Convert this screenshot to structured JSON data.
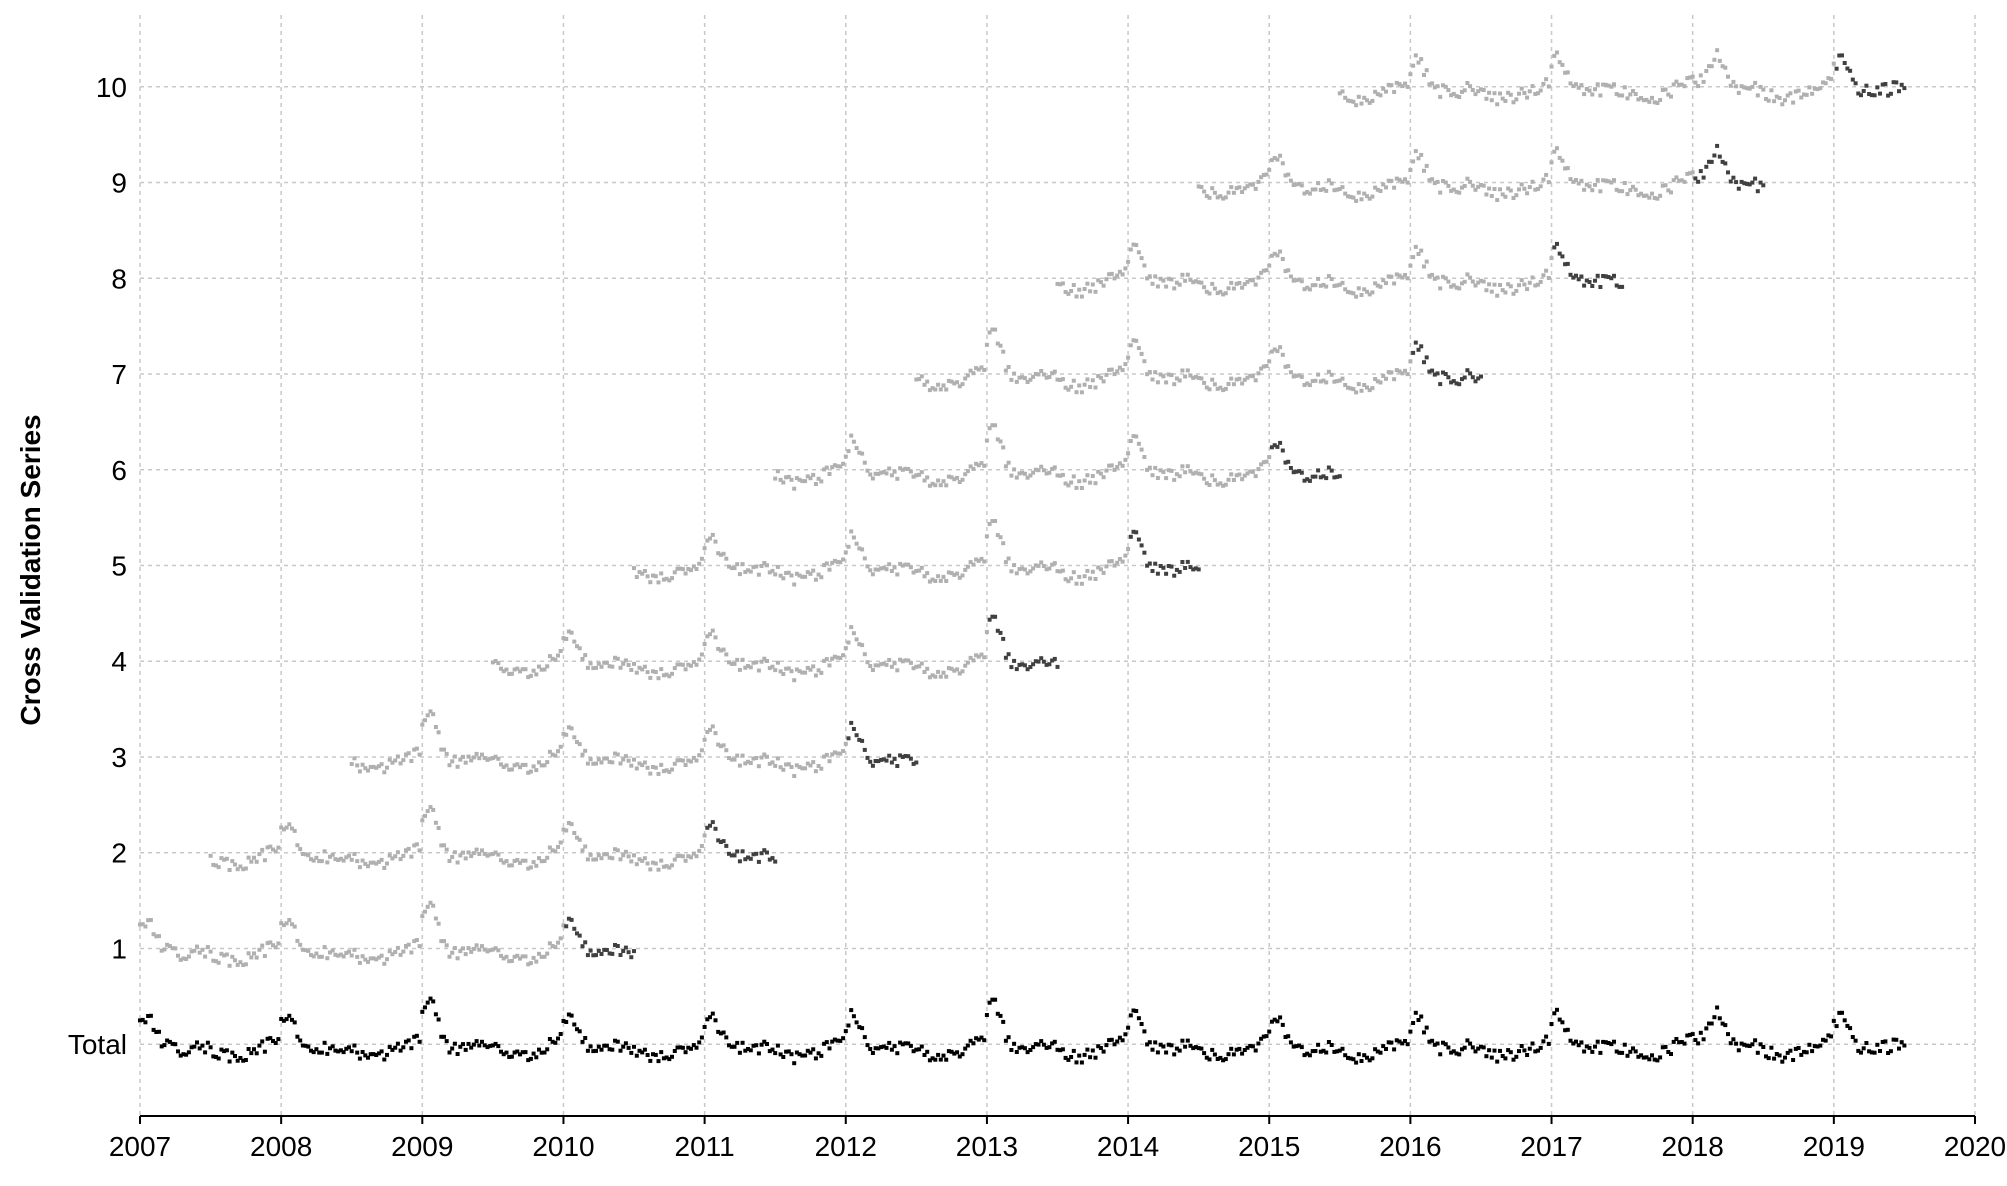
{
  "chart_data": {
    "type": "scatter",
    "title": "",
    "xlabel": "",
    "ylabel": "Cross Validation Series",
    "x_ticks": [
      "2007",
      "2008",
      "2009",
      "2010",
      "2011",
      "2012",
      "2013",
      "2014",
      "2015",
      "2016",
      "2017",
      "2018",
      "2019",
      "2020"
    ],
    "y_ticks": [
      {
        "row": 0,
        "label": "Total"
      },
      {
        "row": 1,
        "label": "1"
      },
      {
        "row": 2,
        "label": "2"
      },
      {
        "row": 3,
        "label": "3"
      },
      {
        "row": 4,
        "label": "4"
      },
      {
        "row": 5,
        "label": "5"
      },
      {
        "row": 6,
        "label": "6"
      },
      {
        "row": 7,
        "label": "7"
      },
      {
        "row": 8,
        "label": "8"
      },
      {
        "row": 9,
        "label": "9"
      },
      {
        "row": 10,
        "label": "10"
      }
    ],
    "xlim": [
      2007,
      2020
    ],
    "ylim": [
      -0.75,
      10.75
    ],
    "grid": true,
    "legend": "none",
    "colors": {
      "total": "#000000",
      "training": "#b0b0b0",
      "validation": "#404040",
      "grid": "#c8c8c8"
    },
    "total_series": {
      "name": "Total",
      "row": 0,
      "start": 2007.0,
      "end": 2019.5
    },
    "folds": [
      {
        "row": 1,
        "train_start": 2007.0,
        "split": 2010.0,
        "valid_end": 2010.5
      },
      {
        "row": 2,
        "train_start": 2007.5,
        "split": 2011.0,
        "valid_end": 2011.5
      },
      {
        "row": 3,
        "train_start": 2008.5,
        "split": 2012.0,
        "valid_end": 2012.5
      },
      {
        "row": 4,
        "train_start": 2009.5,
        "split": 2013.0,
        "valid_end": 2013.5
      },
      {
        "row": 5,
        "train_start": 2010.5,
        "split": 2014.0,
        "valid_end": 2014.5
      },
      {
        "row": 6,
        "train_start": 2011.5,
        "split": 2015.0,
        "valid_end": 2015.5
      },
      {
        "row": 7,
        "train_start": 2012.5,
        "split": 2016.0,
        "valid_end": 2016.5
      },
      {
        "row": 8,
        "train_start": 2013.5,
        "split": 2017.0,
        "valid_end": 2017.5
      },
      {
        "row": 9,
        "train_start": 2014.5,
        "split": 2018.0,
        "valid_end": 2018.5
      },
      {
        "row": 10,
        "train_start": 2015.5,
        "split": 2019.0,
        "valid_end": 2019.5
      }
    ]
  }
}
